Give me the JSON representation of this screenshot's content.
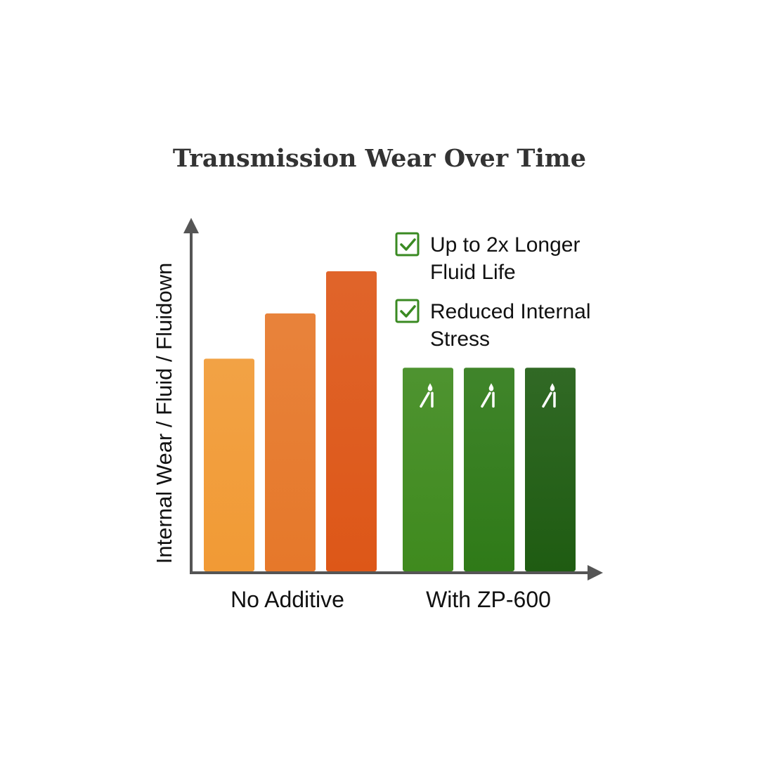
{
  "chart_data": {
    "type": "bar",
    "title": "Transmission Wear Over Time",
    "ylabel": "Internal Wear / Fluid / Fluidown",
    "xlabel": "",
    "ylim": [
      0,
      10
    ],
    "grid": false,
    "groups": [
      {
        "label": "No Additive",
        "values": [
          7.1,
          8.6,
          10.0
        ],
        "colors": [
          "#f19a35",
          "#e6782a",
          "#dd5718"
        ]
      },
      {
        "label": "With ZP-600",
        "values": [
          6.8,
          6.8,
          6.8
        ],
        "colors": [
          "#3f8a1e",
          "#2f7a18",
          "#1f5c12"
        ],
        "icon": "fluid-drop-icon"
      }
    ],
    "callouts": [
      {
        "icon": "checkbox-checked-icon",
        "lines": [
          "Up to 2x Longer",
          "Fluid Life"
        ]
      },
      {
        "icon": "checkbox-checked-icon",
        "lines": [
          "Reduced Internal",
          "Stress"
        ]
      }
    ]
  },
  "colors": {
    "axis": "#555555",
    "check": "#3a8a22",
    "title": "#333333"
  }
}
